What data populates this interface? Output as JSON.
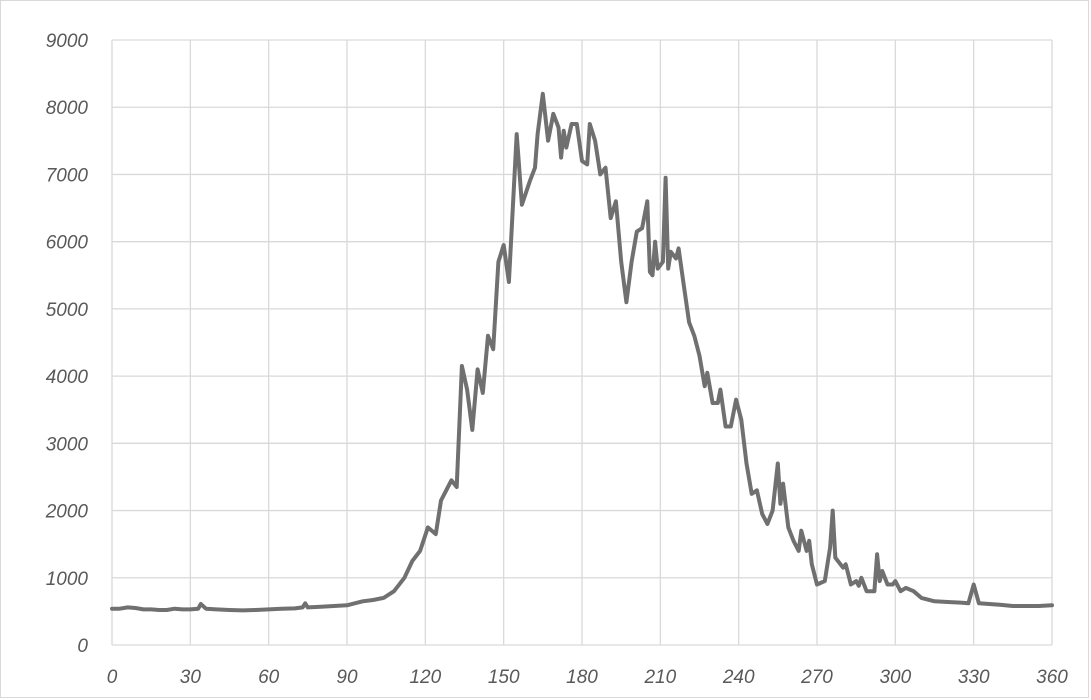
{
  "chart_data": {
    "type": "line",
    "title": "",
    "xlabel": "",
    "ylabel": "",
    "xlim": [
      0,
      360
    ],
    "ylim": [
      0,
      9000
    ],
    "x_ticks": [
      0,
      30,
      60,
      90,
      120,
      150,
      180,
      210,
      240,
      270,
      300,
      330,
      360
    ],
    "y_ticks": [
      0,
      1000,
      2000,
      3000,
      4000,
      5000,
      6000,
      7000,
      8000,
      9000
    ],
    "grid": true,
    "legend": "none",
    "colors": {
      "series": "#707070",
      "grid": "#d9d9d9",
      "axis_text": "#595959"
    },
    "series": [
      {
        "values": [
          [
            0,
            540
          ],
          [
            3,
            540
          ],
          [
            6,
            560
          ],
          [
            9,
            550
          ],
          [
            12,
            530
          ],
          [
            15,
            530
          ],
          [
            18,
            520
          ],
          [
            21,
            520
          ],
          [
            24,
            540
          ],
          [
            27,
            530
          ],
          [
            30,
            530
          ],
          [
            33,
            540
          ],
          [
            34,
            610
          ],
          [
            36,
            540
          ],
          [
            40,
            530
          ],
          [
            45,
            520
          ],
          [
            50,
            515
          ],
          [
            55,
            520
          ],
          [
            60,
            530
          ],
          [
            65,
            540
          ],
          [
            70,
            545
          ],
          [
            73,
            560
          ],
          [
            74,
            620
          ],
          [
            75,
            560
          ],
          [
            80,
            570
          ],
          [
            85,
            580
          ],
          [
            90,
            590
          ],
          [
            93,
            620
          ],
          [
            96,
            650
          ],
          [
            100,
            670
          ],
          [
            104,
            700
          ],
          [
            108,
            800
          ],
          [
            112,
            1000
          ],
          [
            115,
            1250
          ],
          [
            118,
            1400
          ],
          [
            121,
            1750
          ],
          [
            124,
            1650
          ],
          [
            126,
            2150
          ],
          [
            128,
            2300
          ],
          [
            130,
            2450
          ],
          [
            132,
            2350
          ],
          [
            134,
            4150
          ],
          [
            136,
            3800
          ],
          [
            138,
            3200
          ],
          [
            140,
            4100
          ],
          [
            142,
            3750
          ],
          [
            144,
            4600
          ],
          [
            146,
            4400
          ],
          [
            148,
            5700
          ],
          [
            150,
            5950
          ],
          [
            152,
            5400
          ],
          [
            155,
            7600
          ],
          [
            157,
            6550
          ],
          [
            160,
            6900
          ],
          [
            162,
            7100
          ],
          [
            163,
            7600
          ],
          [
            165,
            8200
          ],
          [
            167,
            7500
          ],
          [
            169,
            7900
          ],
          [
            171,
            7700
          ],
          [
            172,
            7250
          ],
          [
            173,
            7650
          ],
          [
            174,
            7400
          ],
          [
            176,
            7750
          ],
          [
            178,
            7750
          ],
          [
            180,
            7200
          ],
          [
            182,
            7150
          ],
          [
            183,
            7750
          ],
          [
            185,
            7500
          ],
          [
            187,
            7000
          ],
          [
            189,
            7100
          ],
          [
            191,
            6350
          ],
          [
            193,
            6600
          ],
          [
            195,
            5700
          ],
          [
            197,
            5100
          ],
          [
            199,
            5700
          ],
          [
            201,
            6150
          ],
          [
            203,
            6200
          ],
          [
            205,
            6600
          ],
          [
            206,
            5550
          ],
          [
            207,
            5500
          ],
          [
            208,
            6000
          ],
          [
            209,
            5600
          ],
          [
            211,
            5700
          ],
          [
            212,
            6950
          ],
          [
            213,
            5600
          ],
          [
            214,
            5850
          ],
          [
            216,
            5750
          ],
          [
            217,
            5900
          ],
          [
            219,
            5350
          ],
          [
            221,
            4800
          ],
          [
            223,
            4600
          ],
          [
            225,
            4300
          ],
          [
            227,
            3850
          ],
          [
            228,
            4050
          ],
          [
            230,
            3600
          ],
          [
            232,
            3600
          ],
          [
            233,
            3800
          ],
          [
            235,
            3250
          ],
          [
            237,
            3250
          ],
          [
            239,
            3650
          ],
          [
            241,
            3350
          ],
          [
            243,
            2700
          ],
          [
            245,
            2250
          ],
          [
            247,
            2300
          ],
          [
            249,
            1950
          ],
          [
            251,
            1800
          ],
          [
            253,
            2000
          ],
          [
            255,
            2700
          ],
          [
            256,
            2100
          ],
          [
            257,
            2400
          ],
          [
            259,
            1750
          ],
          [
            261,
            1550
          ],
          [
            263,
            1400
          ],
          [
            264,
            1700
          ],
          [
            266,
            1400
          ],
          [
            267,
            1550
          ],
          [
            268,
            1200
          ],
          [
            270,
            900
          ],
          [
            273,
            950
          ],
          [
            275,
            1450
          ],
          [
            276,
            2000
          ],
          [
            277,
            1300
          ],
          [
            280,
            1150
          ],
          [
            281,
            1200
          ],
          [
            283,
            900
          ],
          [
            285,
            950
          ],
          [
            286,
            880
          ],
          [
            287,
            1000
          ],
          [
            289,
            800
          ],
          [
            292,
            800
          ],
          [
            293,
            1350
          ],
          [
            294,
            950
          ],
          [
            295,
            1100
          ],
          [
            297,
            900
          ],
          [
            299,
            900
          ],
          [
            300,
            950
          ],
          [
            302,
            800
          ],
          [
            304,
            850
          ],
          [
            307,
            800
          ],
          [
            310,
            700
          ],
          [
            315,
            650
          ],
          [
            320,
            640
          ],
          [
            325,
            630
          ],
          [
            328,
            620
          ],
          [
            330,
            900
          ],
          [
            332,
            620
          ],
          [
            336,
            610
          ],
          [
            340,
            600
          ],
          [
            345,
            580
          ],
          [
            350,
            580
          ],
          [
            355,
            580
          ],
          [
            360,
            590
          ]
        ]
      }
    ]
  }
}
